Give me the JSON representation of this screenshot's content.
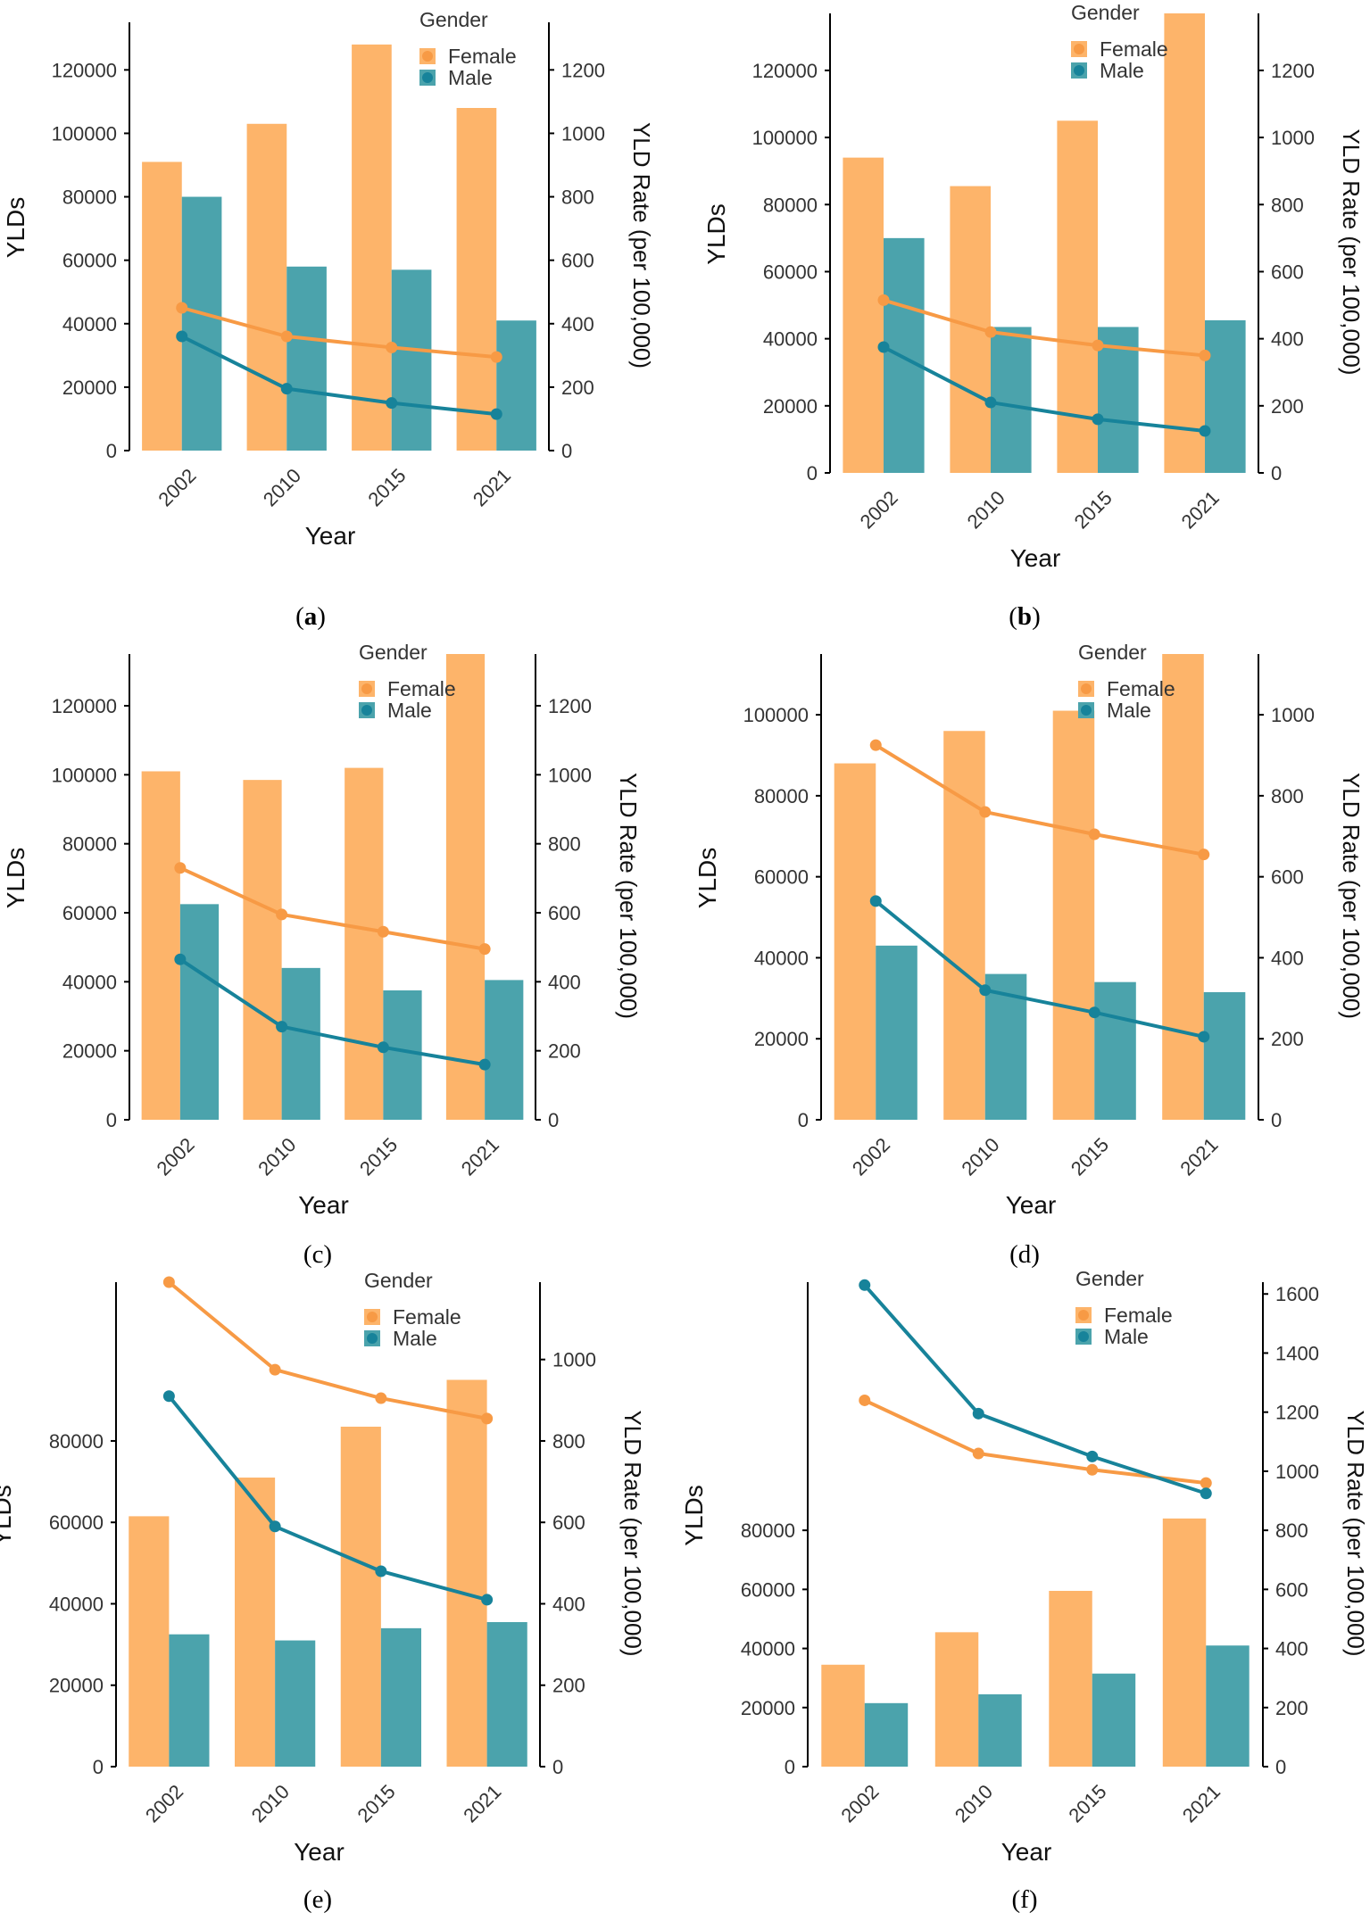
{
  "colors": {
    "female": "#FDB46A",
    "male": "#4BA3AC",
    "female_line": "#F79A45",
    "male_line": "#17839A",
    "axis": "#000000",
    "text": "#333333"
  },
  "chart_data": [
    {
      "id": "a",
      "panel_label": "(a)",
      "type": "bar+line",
      "categories": [
        "2002",
        "2010",
        "2015",
        "2021"
      ],
      "xlabel": "Year",
      "ylabel": "YLDs",
      "y2label": "YLD Rate (per 100,000)",
      "ylim": [
        0,
        135000
      ],
      "y2lim": [
        0,
        1350
      ],
      "yticks": [
        0,
        20000,
        40000,
        60000,
        80000,
        100000,
        120000
      ],
      "y2ticks": [
        0,
        200,
        400,
        600,
        800,
        1000,
        1200
      ],
      "legend": {
        "title": "Gender",
        "position": "top-right"
      },
      "bars": [
        {
          "name": "Female",
          "values": [
            91000,
            103000,
            128000,
            108000
          ]
        },
        {
          "name": "Male",
          "values": [
            80000,
            58000,
            57000,
            41000
          ]
        }
      ],
      "lines": [
        {
          "name": "Female",
          "values": [
            450,
            360,
            325,
            295
          ]
        },
        {
          "name": "Male",
          "values": [
            360,
            195,
            150,
            115
          ]
        }
      ]
    },
    {
      "id": "b",
      "panel_label": "(b)",
      "type": "bar+line",
      "categories": [
        "2002",
        "2010",
        "2015",
        "2021"
      ],
      "xlabel": "Year",
      "ylabel": "YLDs",
      "y2label": "YLD Rate (per 100,000)",
      "ylim": [
        0,
        137000
      ],
      "y2lim": [
        0,
        1370
      ],
      "yticks": [
        0,
        20000,
        40000,
        60000,
        80000,
        100000,
        120000
      ],
      "y2ticks": [
        0,
        200,
        400,
        600,
        800,
        1000,
        1200
      ],
      "legend": {
        "title": "Gender",
        "position": "top-right"
      },
      "bars": [
        {
          "name": "Female",
          "values": [
            94000,
            85500,
            105000,
            137000
          ]
        },
        {
          "name": "Male",
          "values": [
            70000,
            43500,
            43500,
            45500
          ]
        }
      ],
      "lines": [
        {
          "name": "Female",
          "values": [
            515,
            420,
            380,
            350
          ]
        },
        {
          "name": "Male",
          "values": [
            375,
            210,
            160,
            125
          ]
        }
      ]
    },
    {
      "id": "c",
      "panel_label": "(c)",
      "type": "bar+line",
      "categories": [
        "2002",
        "2010",
        "2015",
        "2021"
      ],
      "xlabel": "Year",
      "ylabel": "YLDs",
      "y2label": "YLD Rate (per 100,000)",
      "ylim": [
        0,
        135000
      ],
      "y2lim": [
        0,
        1350
      ],
      "yticks": [
        0,
        20000,
        40000,
        60000,
        80000,
        100000,
        120000
      ],
      "y2ticks": [
        0,
        200,
        400,
        600,
        800,
        1000,
        1200
      ],
      "legend": {
        "title": "Gender",
        "position": "top-right"
      },
      "bars": [
        {
          "name": "Female",
          "values": [
            101000,
            98500,
            102000,
            135000
          ]
        },
        {
          "name": "Male",
          "values": [
            62500,
            44000,
            37500,
            40500
          ]
        }
      ],
      "lines": [
        {
          "name": "Female",
          "values": [
            730,
            595,
            545,
            495
          ]
        },
        {
          "name": "Male",
          "values": [
            465,
            270,
            210,
            160
          ]
        }
      ]
    },
    {
      "id": "d",
      "panel_label": "(d)",
      "type": "bar+line",
      "categories": [
        "2002",
        "2010",
        "2015",
        "2021"
      ],
      "xlabel": "Year",
      "ylabel": "YLDs",
      "y2label": "YLD Rate (per 100,000)",
      "ylim": [
        0,
        115000
      ],
      "y2lim": [
        0,
        1150
      ],
      "yticks": [
        0,
        20000,
        40000,
        60000,
        80000,
        100000
      ],
      "y2ticks": [
        0,
        200,
        400,
        600,
        800,
        1000
      ],
      "legend": {
        "title": "Gender",
        "position": "top-right"
      },
      "bars": [
        {
          "name": "Female",
          "values": [
            88000,
            96000,
            101000,
            115000
          ]
        },
        {
          "name": "Male",
          "values": [
            43000,
            36000,
            34000,
            31500
          ]
        }
      ],
      "lines": [
        {
          "name": "Female",
          "values": [
            925,
            760,
            705,
            655
          ]
        },
        {
          "name": "Male",
          "values": [
            540,
            320,
            265,
            205
          ]
        }
      ]
    },
    {
      "id": "e",
      "panel_label": "(e)",
      "type": "bar+line",
      "categories": [
        "2002",
        "2010",
        "2015",
        "2021"
      ],
      "xlabel": "Year",
      "ylabel": "YLDs",
      "y2label": "YLD Rate (per 100,000)",
      "ylim": [
        0,
        119000
      ],
      "y2lim": [
        0,
        1190
      ],
      "yticks": [
        0,
        20000,
        40000,
        60000,
        80000
      ],
      "y2ticks": [
        0,
        200,
        400,
        600,
        800,
        1000
      ],
      "legend": {
        "title": "Gender",
        "position": "top-right"
      },
      "bars": [
        {
          "name": "Female",
          "values": [
            61500,
            71000,
            83500,
            95000
          ]
        },
        {
          "name": "Male",
          "values": [
            32500,
            31000,
            34000,
            35500
          ]
        }
      ],
      "lines": [
        {
          "name": "Female",
          "values": [
            1190,
            975,
            905,
            855
          ]
        },
        {
          "name": "Male",
          "values": [
            910,
            590,
            480,
            410
          ]
        }
      ]
    },
    {
      "id": "f",
      "panel_label": "(f)",
      "type": "bar+line",
      "categories": [
        "2002",
        "2010",
        "2015",
        "2021"
      ],
      "xlabel": "Year",
      "ylabel": "YLDs",
      "y2label": "YLD Rate (per 100,000)",
      "ylim": [
        0,
        164000
      ],
      "y2lim": [
        0,
        1640
      ],
      "yticks": [
        0,
        20000,
        40000,
        60000,
        80000
      ],
      "y2ticks": [
        0,
        200,
        400,
        600,
        800,
        1000,
        1200,
        1400,
        1600
      ],
      "legend": {
        "title": "Gender",
        "position": "top-right"
      },
      "bars": [
        {
          "name": "Female",
          "values": [
            34500,
            45500,
            59500,
            84000
          ]
        },
        {
          "name": "Male",
          "values": [
            21500,
            24500,
            31500,
            41000
          ]
        }
      ],
      "lines": [
        {
          "name": "Female",
          "values": [
            1240,
            1060,
            1005,
            960
          ]
        },
        {
          "name": "Male",
          "values": [
            1630,
            1195,
            1050,
            925
          ]
        }
      ]
    }
  ]
}
